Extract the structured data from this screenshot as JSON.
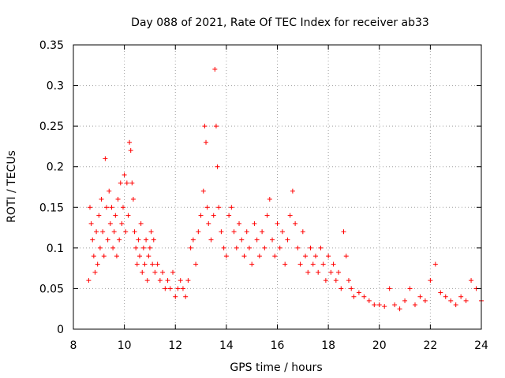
{
  "chart_data": {
    "type": "scatter",
    "title": "Day 088 of 2021, Rate Of TEC Index for receiver ab33",
    "xlabel": "GPS time / hours",
    "ylabel": "ROTI / TECUs",
    "xlim": [
      8,
      24
    ],
    "ylim": [
      0,
      0.35
    ],
    "xticks": [
      "8",
      "10",
      "12",
      "14",
      "16",
      "18",
      "20",
      "22",
      "24"
    ],
    "yticks": [
      "0",
      "0.05",
      "0.1",
      "0.15",
      "0.2",
      "0.25",
      "0.3",
      "0.35"
    ],
    "grid": true,
    "marker": "+",
    "color": "#ff0000",
    "series": [
      {
        "x": [
          8.6,
          8.65,
          8.7,
          8.75,
          8.8,
          8.85,
          8.9,
          8.95,
          9.0,
          9.05,
          9.1,
          9.15,
          9.2,
          9.25,
          9.3,
          9.35,
          9.4,
          9.45,
          9.5,
          9.55,
          9.6,
          9.65,
          9.7,
          9.75,
          9.8,
          9.85,
          9.9,
          9.95,
          10.0,
          10.05,
          10.1,
          10.15,
          10.2,
          10.25,
          10.3,
          10.35,
          10.4,
          10.45,
          10.5,
          10.55,
          10.6,
          10.65,
          10.7,
          10.75,
          10.8,
          10.85,
          10.9,
          10.95,
          11.0,
          11.05,
          11.1,
          11.15,
          11.2,
          11.3,
          11.4,
          11.5,
          11.6,
          11.7,
          11.8,
          11.9,
          12.0,
          12.1,
          12.2,
          12.3,
          12.4,
          12.5,
          12.6,
          12.7,
          12.8,
          12.9,
          13.0,
          13.1,
          13.15,
          13.2,
          13.25,
          13.3,
          13.4,
          13.5,
          13.55,
          13.6,
          13.65,
          13.7,
          13.8,
          13.9,
          14.0,
          14.1,
          14.2,
          14.3,
          14.4,
          14.5,
          14.6,
          14.7,
          14.8,
          14.9,
          15.0,
          15.1,
          15.2,
          15.3,
          15.4,
          15.5,
          15.6,
          15.7,
          15.8,
          15.9,
          16.0,
          16.1,
          16.2,
          16.3,
          16.4,
          16.5,
          16.6,
          16.7,
          16.8,
          16.9,
          17.0,
          17.1,
          17.2,
          17.3,
          17.4,
          17.5,
          17.6,
          17.7,
          17.8,
          17.9,
          18.0,
          18.1,
          18.2,
          18.3,
          18.4,
          18.5,
          18.6,
          18.7,
          18.8,
          18.9,
          19.0,
          19.2,
          19.4,
          19.6,
          19.8,
          20.0,
          20.2,
          20.4,
          20.6,
          20.8,
          21.0,
          21.2,
          21.4,
          21.6,
          21.8,
          22.0,
          22.2,
          22.4,
          22.6,
          22.8,
          23.0,
          23.2,
          23.4,
          23.6,
          23.8,
          24.0
        ],
        "y": [
          0.06,
          0.15,
          0.13,
          0.11,
          0.09,
          0.07,
          0.12,
          0.08,
          0.14,
          0.1,
          0.16,
          0.12,
          0.09,
          0.21,
          0.15,
          0.11,
          0.17,
          0.13,
          0.15,
          0.1,
          0.12,
          0.14,
          0.09,
          0.16,
          0.11,
          0.18,
          0.13,
          0.15,
          0.19,
          0.12,
          0.18,
          0.14,
          0.23,
          0.22,
          0.18,
          0.16,
          0.12,
          0.1,
          0.08,
          0.11,
          0.09,
          0.13,
          0.07,
          0.1,
          0.08,
          0.11,
          0.06,
          0.09,
          0.1,
          0.12,
          0.08,
          0.11,
          0.07,
          0.08,
          0.06,
          0.07,
          0.05,
          0.06,
          0.05,
          0.07,
          0.04,
          0.05,
          0.06,
          0.05,
          0.04,
          0.06,
          0.1,
          0.11,
          0.08,
          0.12,
          0.14,
          0.17,
          0.25,
          0.23,
          0.15,
          0.13,
          0.11,
          0.14,
          0.32,
          0.25,
          0.2,
          0.15,
          0.12,
          0.1,
          0.09,
          0.14,
          0.15,
          0.12,
          0.1,
          0.13,
          0.11,
          0.09,
          0.12,
          0.1,
          0.08,
          0.13,
          0.11,
          0.09,
          0.12,
          0.1,
          0.14,
          0.16,
          0.11,
          0.09,
          0.13,
          0.1,
          0.12,
          0.08,
          0.11,
          0.14,
          0.17,
          0.13,
          0.1,
          0.08,
          0.12,
          0.09,
          0.07,
          0.1,
          0.08,
          0.09,
          0.07,
          0.1,
          0.08,
          0.06,
          0.09,
          0.07,
          0.08,
          0.06,
          0.07,
          0.05,
          0.12,
          0.09,
          0.06,
          0.05,
          0.04,
          0.045,
          0.04,
          0.035,
          0.03,
          0.03,
          0.028,
          0.05,
          0.03,
          0.025,
          0.035,
          0.05,
          0.03,
          0.04,
          0.035,
          0.06,
          0.08,
          0.045,
          0.04,
          0.035,
          0.03,
          0.04,
          0.035,
          0.06,
          0.05,
          0.035
        ]
      }
    ]
  }
}
